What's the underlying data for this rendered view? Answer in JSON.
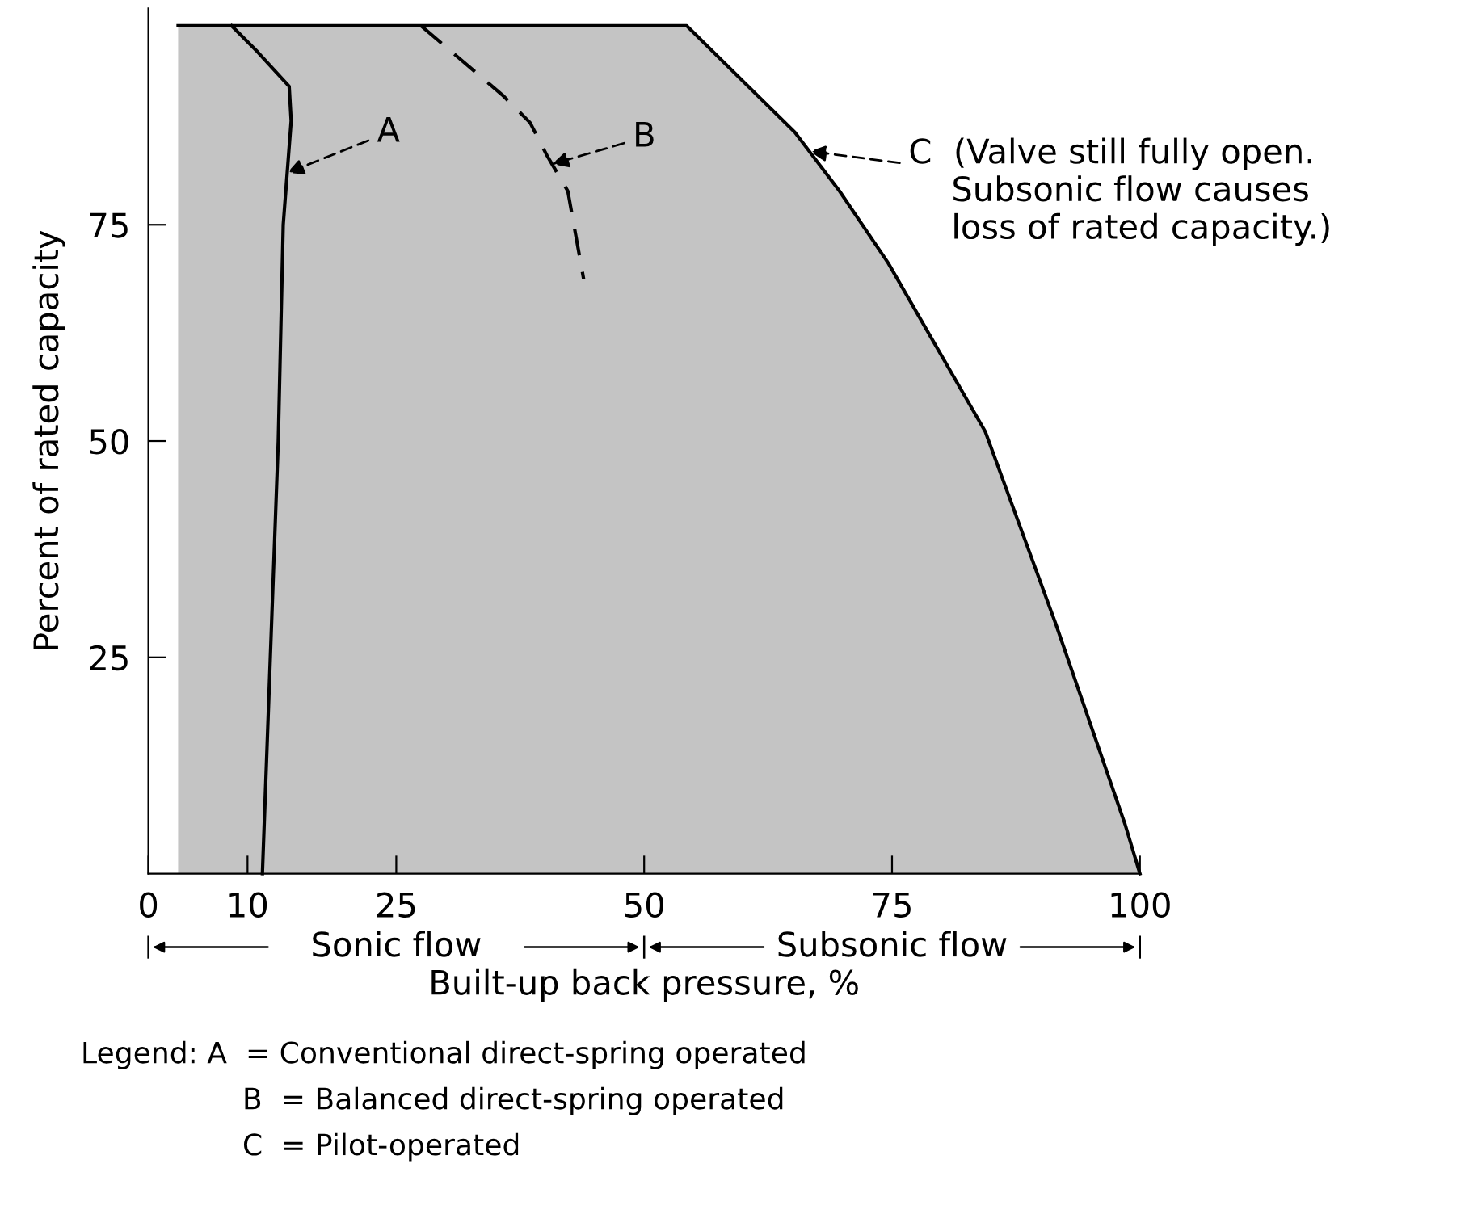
{
  "chart_data": {
    "type": "line",
    "xlabel": "Built-up back pressure, %",
    "ylabel": "Percent of rated capacity",
    "xlim": [
      0,
      100
    ],
    "ylim": [
      0,
      100
    ],
    "xticks": [
      0,
      10,
      25,
      50,
      75,
      100
    ],
    "yticks": [
      25,
      50,
      75
    ],
    "grid": false,
    "legend": false,
    "marker": "none",
    "series": [
      {
        "color": "#000000",
        "line_style": "solid",
        "x": [
          11.5,
          13.1,
          13.6,
          14.4,
          14.2,
          11,
          8.4
        ],
        "values": [
          0,
          50,
          75,
          87,
          91,
          95,
          98
        ]
      },
      {
        "color": "#000000",
        "line_style": "dashed",
        "x": [
          27.5,
          35.7,
          38.5,
          40.2,
          42.3,
          43.9
        ],
        "values": [
          98,
          90,
          86.8,
          83,
          78.9,
          68.7
        ]
      },
      {
        "type": "area",
        "color": "#c4c4c4",
        "line_style": "solid",
        "x": [
          3,
          54.3,
          65.2,
          69.7,
          74.6,
          84.4,
          91.5,
          98.5,
          100
        ],
        "values": [
          98,
          98,
          85.7,
          78.9,
          70.6,
          51.1,
          28.9,
          5.7,
          0
        ]
      }
    ],
    "annotations": [
      {
        "text": "A",
        "x": 14,
        "y": 81
      },
      {
        "text": "B",
        "x": 40.7,
        "y": 82
      },
      {
        "text": "C  (Valve still fully open.\n    Subsonic flow causes\n    loss of rated capacity.)",
        "x": 66.7,
        "y": 83.5
      },
      "Sonic flow",
      "Subsonic flow",
      "Legend: A  = Conventional direct-spring operated",
      "B  = Balanced direct-spring operated",
      "C  = Pilot-operated"
    ]
  }
}
